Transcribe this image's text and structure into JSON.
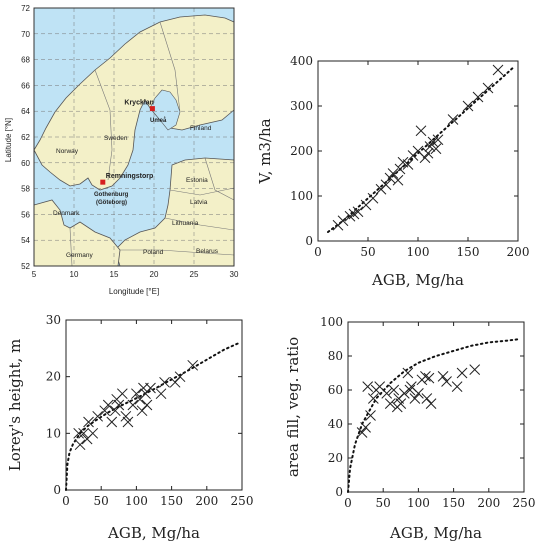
{
  "map": {
    "ylabel": "Latitude [°N]",
    "xlabel": "Longitude [°E]",
    "lat_ticks": [
      "52",
      "54",
      "56",
      "58",
      "60",
      "62",
      "64",
      "66",
      "68",
      "70",
      "72"
    ],
    "lon_ticks": [
      "5",
      "10",
      "15",
      "20",
      "25",
      "30"
    ],
    "sites": [
      {
        "label": "Krycklan",
        "lon": 19.8,
        "lat": 64.2
      },
      {
        "label": "Remningstorp",
        "lon": 13.6,
        "lat": 58.5
      }
    ],
    "places": [
      "Norway",
      "Sweden",
      "Finland",
      "Umeå",
      "Estonia",
      "Latvia",
      "Lithuania",
      "Belarus",
      "Poland",
      "Germany",
      "Denmark",
      "Gothenburg",
      "(Göteborg)"
    ],
    "colors": {
      "sea": "#bfe3f5",
      "land": "#f3f0c8",
      "border": "#666666",
      "grid": "#777777",
      "site": "#d62020"
    }
  },
  "chart_data": [
    {
      "id": "v",
      "type": "scatter",
      "xlabel": "AGB, Mg/ha",
      "ylabel": "V, m3/ha",
      "xlim": [
        0,
        200
      ],
      "ylim": [
        0,
        400
      ],
      "xticks": [
        "0",
        "50",
        "100",
        "150",
        "200"
      ],
      "yticks": [
        "0",
        "100",
        "200",
        "300",
        "400"
      ],
      "points": [
        [
          20,
          35
        ],
        [
          25,
          45
        ],
        [
          32,
          55
        ],
        [
          36,
          60
        ],
        [
          40,
          65
        ],
        [
          48,
          80
        ],
        [
          55,
          95
        ],
        [
          63,
          115
        ],
        [
          68,
          125
        ],
        [
          72,
          140
        ],
        [
          75,
          150
        ],
        [
          80,
          135
        ],
        [
          82,
          160
        ],
        [
          85,
          175
        ],
        [
          90,
          170
        ],
        [
          95,
          190
        ],
        [
          100,
          200
        ],
        [
          103,
          245
        ],
        [
          107,
          185
        ],
        [
          110,
          195
        ],
        [
          112,
          210
        ],
        [
          115,
          220
        ],
        [
          118,
          205
        ],
        [
          120,
          225
        ],
        [
          135,
          270
        ],
        [
          150,
          300
        ],
        [
          160,
          320
        ],
        [
          170,
          340
        ],
        [
          180,
          380
        ]
      ],
      "fit": {
        "style": "dotted",
        "x": [
          10,
          25,
          50,
          75,
          100,
          125,
          150,
          175,
          195
        ],
        "y": [
          20,
          45,
          95,
          145,
          195,
          245,
          295,
          345,
          385
        ]
      }
    },
    {
      "id": "h",
      "type": "scatter",
      "xlabel": "AGB, Mg/ha",
      "ylabel": "Lorey's height, m",
      "xlim": [
        0,
        250
      ],
      "ylim": [
        0,
        30
      ],
      "xticks": [
        "0",
        "50",
        "100",
        "150",
        "200",
        "250"
      ],
      "yticks": [
        "0",
        "10",
        "20",
        "30"
      ],
      "points": [
        [
          18,
          10
        ],
        [
          20,
          8
        ],
        [
          25,
          10
        ],
        [
          30,
          9
        ],
        [
          32,
          12
        ],
        [
          38,
          10
        ],
        [
          45,
          13
        ],
        [
          55,
          14
        ],
        [
          60,
          15
        ],
        [
          65,
          12
        ],
        [
          70,
          14
        ],
        [
          72,
          16
        ],
        [
          75,
          15
        ],
        [
          80,
          17
        ],
        [
          85,
          13
        ],
        [
          88,
          12
        ],
        [
          95,
          15
        ],
        [
          100,
          17
        ],
        [
          105,
          16
        ],
        [
          108,
          14
        ],
        [
          110,
          18
        ],
        [
          113,
          17
        ],
        [
          115,
          15
        ],
        [
          120,
          18
        ],
        [
          135,
          17
        ],
        [
          140,
          19
        ],
        [
          155,
          19
        ],
        [
          162,
          20
        ],
        [
          180,
          22
        ]
      ],
      "fit": {
        "style": "dotted",
        "x": [
          0,
          2,
          5,
          10,
          20,
          30,
          40,
          60,
          80,
          100,
          125,
          150,
          175,
          200,
          225,
          245
        ],
        "y": [
          0,
          4.5,
          6.6,
          8.1,
          10,
          11.2,
          12.1,
          13.7,
          15,
          16.2,
          17.8,
          19.5,
          21.2,
          23,
          24.8,
          25.9
        ]
      }
    },
    {
      "id": "a",
      "type": "scatter",
      "xlabel": "AGB, Mg/ha",
      "ylabel": "area fill, veg. ratio",
      "xlim": [
        0,
        250
      ],
      "ylim": [
        0,
        100
      ],
      "xticks": [
        "0",
        "50",
        "100",
        "150",
        "200",
        "250"
      ],
      "yticks": [
        "0",
        "20",
        "40",
        "60",
        "80",
        "100"
      ],
      "points": [
        [
          20,
          35
        ],
        [
          25,
          38
        ],
        [
          28,
          62
        ],
        [
          32,
          45
        ],
        [
          36,
          55
        ],
        [
          40,
          60
        ],
        [
          45,
          62
        ],
        [
          55,
          58
        ],
        [
          60,
          52
        ],
        [
          65,
          60
        ],
        [
          70,
          50
        ],
        [
          72,
          55
        ],
        [
          75,
          52
        ],
        [
          80,
          58
        ],
        [
          85,
          70
        ],
        [
          88,
          60
        ],
        [
          90,
          62
        ],
        [
          95,
          55
        ],
        [
          100,
          58
        ],
        [
          105,
          66
        ],
        [
          110,
          68
        ],
        [
          112,
          55
        ],
        [
          115,
          67
        ],
        [
          118,
          52
        ],
        [
          135,
          68
        ],
        [
          140,
          65
        ],
        [
          155,
          62
        ],
        [
          162,
          70
        ],
        [
          180,
          72
        ]
      ],
      "fit": {
        "style": "dotted",
        "x": [
          0,
          3,
          10,
          20,
          40,
          60,
          80,
          100,
          125,
          150,
          175,
          200,
          225,
          245
        ],
        "y": [
          0,
          14,
          28,
          40,
          55,
          64,
          71,
          76,
          80,
          83,
          86,
          88,
          89,
          90
        ]
      }
    }
  ]
}
